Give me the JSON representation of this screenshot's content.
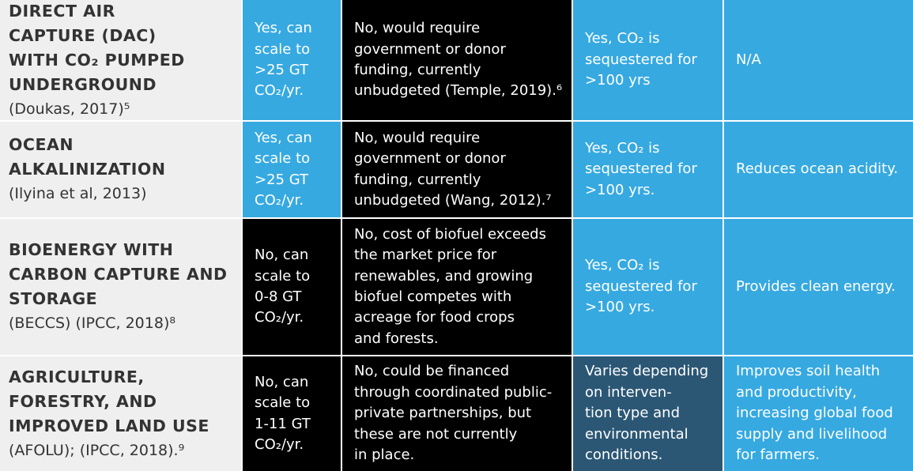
{
  "table": {
    "rows": [
      {
        "title": [
          "DIRECT AIR",
          "CAPTURE (DAC)",
          "WITH CO₂ PUMPED",
          "UNDERGROUND"
        ],
        "citation": "(Doukas, 2017)⁵",
        "cells": [
          {
            "color": "#36a9e1",
            "lines": [
              "Yes, can",
              "scale to",
              ">25 GT",
              "CO₂/yr."
            ]
          },
          {
            "color": "#000000",
            "lines": [
              "No, would require",
              "government or donor",
              "funding, currently",
              "unbudgeted (Temple, 2019).⁶"
            ]
          },
          {
            "color": "#36a9e1",
            "lines": [
              "Yes, CO₂ is",
              "sequestered for",
              ">100 yrs"
            ]
          },
          {
            "color": "#36a9e1",
            "lines": [
              "N/A"
            ]
          }
        ]
      },
      {
        "title": [
          "OCEAN",
          "ALKALINIZATION"
        ],
        "citation": "(Ilyina et al, 2013)",
        "cells": [
          {
            "color": "#36a9e1",
            "lines": [
              "Yes, can",
              "scale to",
              ">25 GT",
              "CO₂/yr."
            ]
          },
          {
            "color": "#000000",
            "lines": [
              "No, would require",
              "government or donor",
              "funding, currently",
              "unbudgeted (Wang, 2012).⁷"
            ]
          },
          {
            "color": "#36a9e1",
            "lines": [
              "Yes, CO₂ is",
              "sequestered for",
              ">100 yrs."
            ]
          },
          {
            "color": "#36a9e1",
            "lines": [
              "Reduces ocean acidity."
            ]
          }
        ]
      },
      {
        "title": [
          "BIOENERGY WITH",
          "CARBON CAPTURE AND",
          "STORAGE"
        ],
        "citation": "(BECCS) (IPCC, 2018)⁸",
        "cells": [
          {
            "color": "#000000",
            "lines": [
              "No, can",
              "scale to",
              "0-8 GT",
              "CO₂/yr."
            ]
          },
          {
            "color": "#000000",
            "lines": [
              "No, cost of biofuel exceeds",
              "the market price for",
              "renewables, and growing",
              "biofuel competes with",
              "acreage for food crops",
              "and forests."
            ]
          },
          {
            "color": "#36a9e1",
            "lines": [
              "Yes, CO₂ is",
              "sequestered for",
              ">100 yrs."
            ]
          },
          {
            "color": "#36a9e1",
            "lines": [
              "Provides clean energy."
            ]
          }
        ]
      },
      {
        "title": [
          "AGRICULTURE,",
          "FORESTRY, AND",
          "IMPROVED LAND USE"
        ],
        "citation": "(AFOLU); (IPCC, 2018).⁹",
        "cells": [
          {
            "color": "#000000",
            "lines": [
              "No, can",
              "scale to",
              "1-11 GT",
              "CO₂/yr."
            ]
          },
          {
            "color": "#000000",
            "lines": [
              "No, could be financed",
              "through coordinated public-",
              "private partnerships, but",
              "these are not currently",
              "in place."
            ]
          },
          {
            "color": "#2b5775",
            "lines": [
              "Varies depending",
              "on interven-",
              "tion type and",
              "environmental",
              "conditions."
            ]
          },
          {
            "color": "#36a9e1",
            "lines": [
              "Improves soil health",
              "and productivity,",
              "increasing global food",
              "supply and livelihood",
              "for farmers."
            ]
          }
        ]
      }
    ]
  }
}
